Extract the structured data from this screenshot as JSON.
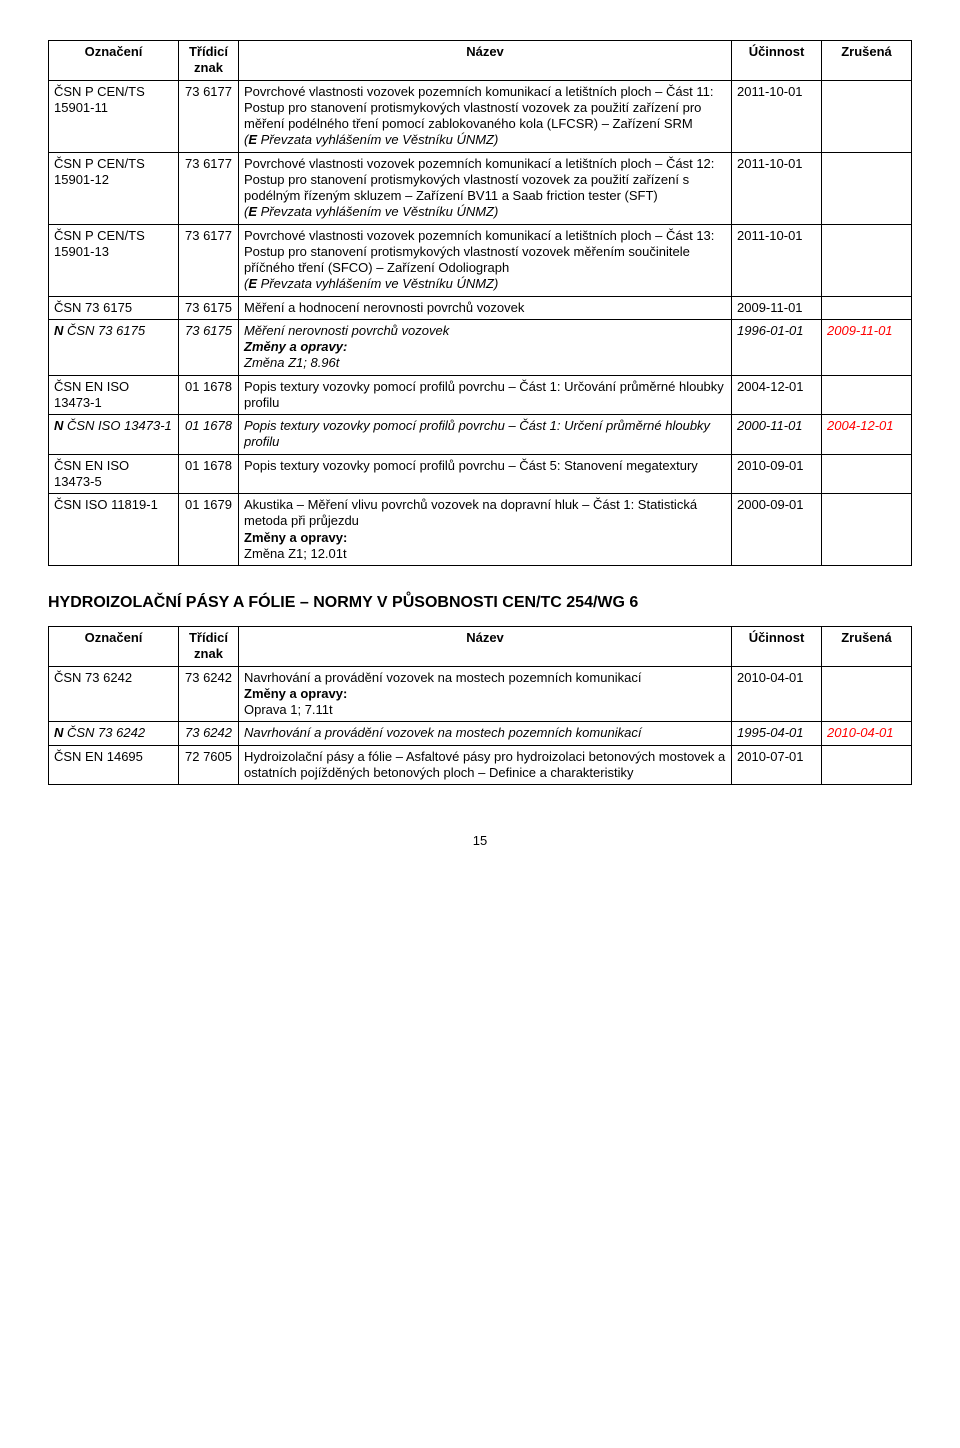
{
  "table1": {
    "headers": {
      "col1": "Označení",
      "col2": "Třídicí znak",
      "col3": "Název",
      "col4": "Účinnost",
      "col5": "Zrušená"
    },
    "rows": [
      {
        "ozn": "ČSN P CEN/TS 15901-11",
        "trid": "73 6177",
        "nazev_lines": [
          "Povrchové vlastnosti vozovek pozemních komunikací a letištních ploch – Část 11: Postup pro stanovení protismykových vlastností vozovek za použití zařízení pro měření podélného tření pomocí zablokovaného kola (LFCSR) – Zařízení SRM"
        ],
        "nazev_italic": "(E Převzata vyhlášením ve Věstníku ÚNMZ)",
        "ucin": "2011-10-01",
        "zrus": ""
      },
      {
        "ozn": "ČSN P CEN/TS 15901-12",
        "trid": "73 6177",
        "nazev_lines": [
          "Povrchové vlastnosti vozovek pozemních komunikací a letištních ploch – Část 12: Postup pro stanovení protismykových vlastností vozovek za použití zařízení s podélným řízeným skluzem – Zařízení BV11 a Saab friction tester (SFT)"
        ],
        "nazev_italic": "(E Převzata vyhlášením ve Věstníku ÚNMZ)",
        "ucin": "2011-10-01",
        "zrus": ""
      },
      {
        "ozn": "ČSN P CEN/TS 15901-13",
        "trid": "73 6177",
        "nazev_lines": [
          "Povrchové vlastnosti vozovek pozemních komunikací a letištních ploch – Část 13: Postup pro stanovení protismykových vlastností vozovek měřením součinitele příčného tření (SFCO) – Zařízení Odoliograph"
        ],
        "nazev_italic": "(E Převzata vyhlášením ve Věstníku ÚNMZ)",
        "ucin": "2011-10-01",
        "zrus": ""
      },
      {
        "ozn": "ČSN 73 6175",
        "trid": "73 6175",
        "nazev_lines": [
          "Měření a hodnocení nerovnosti povrchů vozovek"
        ],
        "ucin": "2009-11-01",
        "zrus": ""
      },
      {
        "ozn_bold_prefix": "N",
        "ozn_rest": " ČSN 73 6175",
        "italic_row": true,
        "trid": "73 6175",
        "nazev_lines": [
          "Měření nerovnosti povrchů vozovek"
        ],
        "nazev_bold": "Změny a opravy:",
        "nazev_post": "Změna Z1; 8.96t",
        "ucin": "1996-01-01",
        "zrus": "2009-11-01",
        "zrus_red": true
      },
      {
        "ozn": "ČSN EN ISO 13473-1",
        "trid": "01 1678",
        "nazev_lines": [
          "Popis textury vozovky pomocí profilů povrchu – Část 1: Určování průměrné hloubky profilu"
        ],
        "ucin": "2004-12-01",
        "zrus": ""
      },
      {
        "ozn_bold_prefix": "N",
        "ozn_rest": " ČSN ISO 13473-1",
        "italic_row": true,
        "trid": "01 1678",
        "nazev_lines": [
          "Popis textury vozovky pomocí profilů povrchu – Část 1: Určení průměrné hloubky profilu"
        ],
        "ucin": "2000-11-01",
        "zrus": "2004-12-01",
        "zrus_red": true
      },
      {
        "ozn": "ČSN EN ISO 13473-5",
        "trid": "01 1678",
        "nazev_lines": [
          "Popis textury vozovky pomocí profilů povrchu – Část 5: Stanovení megatextury"
        ],
        "ucin": "2010-09-01",
        "zrus": ""
      },
      {
        "ozn": "ČSN ISO 11819-1",
        "trid": "01 1679",
        "nazev_lines": [
          "Akustika – Měření vlivu povrchů vozovek na dopravní hluk – Část 1: Statistická metoda při průjezdu"
        ],
        "nazev_bold": "Změny a opravy:",
        "nazev_post": "Změna Z1; 12.01t",
        "ucin": "2000-09-01",
        "zrus": ""
      }
    ]
  },
  "section_heading": "HYDROIZOLAČNÍ PÁSY A FÓLIE – NORMY V PŮSOBNOSTI CEN/TC 254/WG 6",
  "table2": {
    "headers": {
      "col1": "Označení",
      "col2": "Třídicí znak",
      "col3": "Název",
      "col4": "Účinnost",
      "col5": "Zrušená"
    },
    "rows": [
      {
        "ozn": "ČSN 73 6242",
        "trid": "73 6242",
        "nazev_lines": [
          "Navrhování a provádění vozovek na mostech pozemních komunikací"
        ],
        "nazev_bold": "Změny a opravy:",
        "nazev_post": "Oprava 1; 7.11t",
        "ucin": "2010-04-01",
        "zrus": ""
      },
      {
        "ozn_bold_prefix": "N",
        "ozn_rest": " ČSN 73 6242",
        "italic_row": true,
        "trid": "73 6242",
        "nazev_lines": [
          "Navrhování a provádění vozovek na mostech pozemních komunikací"
        ],
        "ucin": "1995-04-01",
        "zrus": "2010-04-01",
        "zrus_red": true
      },
      {
        "ozn": "ČSN EN 14695",
        "trid": "72 7605",
        "nazev_lines": [
          "Hydroizolační pásy a fólie – Asfaltové pásy pro hydroizolaci betonových mostovek a ostatních pojížděných betonových ploch – Definice a charakteristiky"
        ],
        "ucin": "2010-07-01",
        "zrus": ""
      }
    ]
  },
  "page_number": "15",
  "colors": {
    "text": "#000000",
    "red": "#ff0000",
    "border": "#000000",
    "background": "#ffffff"
  },
  "font": {
    "family": "Arial",
    "size_body": 13,
    "size_heading": 16
  }
}
